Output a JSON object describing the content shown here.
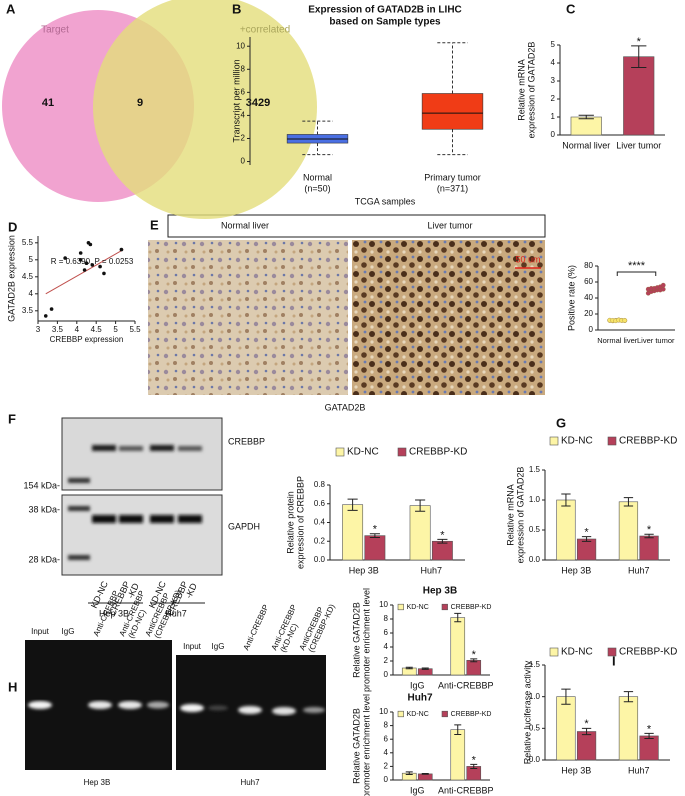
{
  "chart_data": [
    {
      "type": "venn",
      "panel": "A",
      "sets": [
        "Target",
        "+correlated"
      ],
      "values": [
        41,
        9,
        3429
      ],
      "colors": [
        "#ee8cc4",
        "#e3dd7a"
      ]
    },
    {
      "type": "box",
      "panel": "B",
      "title": [
        "Expression of GATAD2B in LIHC",
        "based on Sample types"
      ],
      "ylabel": "Transcript per million",
      "xlabel": "TCGA samples",
      "categories": [
        "Normal",
        "Primary tumor"
      ],
      "category_notes": [
        "(n=50)",
        "(n=371)"
      ],
      "boxes": [
        {
          "min": 0.6,
          "q1": 1.6,
          "median": 1.95,
          "q3": 2.35,
          "max": 3.5
        },
        {
          "min": 0.6,
          "q1": 2.8,
          "median": 4.2,
          "q3": 5.9,
          "max": 10.3
        }
      ],
      "colors": [
        "#4a6fe3",
        "#f03c16"
      ],
      "ylim": [
        -0.3,
        10.8
      ],
      "yticks": [
        0,
        2,
        4,
        6,
        8,
        10
      ]
    },
    {
      "type": "bar",
      "panel": "C",
      "ylabel": [
        "Relative mRNA",
        "expression of GATAD2B"
      ],
      "categories": [
        "Normal liver",
        "Liver tumor"
      ],
      "values": [
        1.0,
        4.35
      ],
      "errors": [
        0.1,
        0.6
      ],
      "significance": [
        null,
        "*"
      ],
      "colors": [
        "#fdf5a6",
        "#b5405a"
      ],
      "ylim": [
        0,
        5
      ],
      "yticks": [
        0,
        1,
        2,
        3,
        4,
        5
      ]
    },
    {
      "type": "scatter",
      "panel": "D",
      "annotation": "R = 0.6390, P = 0.0253",
      "xlabel": "CREBBP expression",
      "ylabel": "GATAD2B expression",
      "x": [
        3.2,
        3.35,
        3.7,
        4.1,
        4.1,
        4.2,
        4.25,
        4.3,
        4.35,
        4.4,
        4.6,
        4.7,
        5.15
      ],
      "y": [
        3.35,
        3.55,
        5.05,
        5.2,
        5.0,
        4.7,
        4.9,
        5.5,
        5.45,
        4.85,
        4.8,
        4.6,
        5.3
      ],
      "color": "#111111",
      "trendline": {
        "x": [
          3.2,
          5.2
        ],
        "y": [
          4.0,
          5.3
        ]
      },
      "trend_color": "#c0504d",
      "xlim": [
        3,
        5.5
      ],
      "ylim": [
        3.2,
        5.7
      ],
      "xticks": [
        3,
        3.5,
        4,
        4.5,
        5,
        5.5
      ],
      "yticks": [
        3.5,
        4,
        4.5,
        5,
        5.5
      ]
    },
    {
      "type": "strip",
      "ylabel": "Positive rate (%)",
      "categories": [
        "Normal liver",
        "Liver tumor"
      ],
      "values": [
        [
          12,
          11.5,
          12,
          12.5,
          12,
          11.8,
          12.2,
          12,
          11.6,
          12.4,
          12,
          12
        ],
        [
          46,
          48,
          49,
          50,
          50,
          51,
          51,
          52,
          52,
          53,
          54,
          56
        ]
      ],
      "colors": [
        "#f7e46a",
        "#b5405a"
      ],
      "significance": "****",
      "ylim": [
        0,
        80
      ],
      "yticks": [
        0,
        20,
        40,
        60,
        80
      ]
    },
    {
      "type": "bar",
      "ylabel": [
        "Relative protein",
        "expression of CREBBP"
      ],
      "categories": [
        "Hep 3B",
        "Huh7"
      ],
      "series": [
        {
          "name": "KD-NC",
          "color": "#fdf5a6",
          "values": [
            0.59,
            0.58
          ],
          "errors": [
            0.06,
            0.06
          ]
        },
        {
          "name": "CREBBP-KD",
          "color": "#b5405a",
          "values": [
            0.26,
            0.2
          ],
          "errors": [
            0.02,
            0.02
          ],
          "significance": [
            "*",
            "*"
          ]
        }
      ],
      "ylim": [
        0,
        0.8
      ],
      "yticks": [
        {
          "value": 0,
          "label": "0.0"
        },
        {
          "value": 0.2,
          "label": "0.2"
        },
        {
          "value": 0.4,
          "label": "0.4"
        },
        {
          "value": 0.6,
          "label": "0.6"
        },
        {
          "value": 0.8,
          "label": "0.8"
        }
      ]
    },
    {
      "type": "bar",
      "panel": "G",
      "ylabel": [
        "Relative mRNA",
        "expression of GATAD2B"
      ],
      "categories": [
        "Hep 3B",
        "Huh7"
      ],
      "series": [
        {
          "name": "KD-NC",
          "color": "#fdf5a6",
          "values": [
            1.0,
            0.97
          ],
          "errors": [
            0.1,
            0.07
          ]
        },
        {
          "name": "CREBBP-KD",
          "color": "#b5405a",
          "values": [
            0.35,
            0.4
          ],
          "errors": [
            0.04,
            0.03
          ],
          "significance": [
            "*",
            "*"
          ]
        }
      ],
      "ylim": [
        0,
        1.5
      ],
      "yticks": [
        {
          "value": 0,
          "label": "0.0"
        },
        {
          "value": 0.5,
          "label": "0.5"
        },
        {
          "value": 1,
          "label": "1.0"
        },
        {
          "value": 1.5,
          "label": "1.5"
        }
      ]
    },
    {
      "type": "bar",
      "title": "Hep 3B",
      "ylabel": [
        "Relative GATAD2B",
        "promoter enrichment level"
      ],
      "categories": [
        "IgG",
        "Anti-CREBBP"
      ],
      "series": [
        {
          "name": "KD-NC",
          "color": "#fdf5a6",
          "values": [
            1.0,
            8.2
          ],
          "errors": [
            0.1,
            0.6
          ]
        },
        {
          "name": "CREBBP-KD",
          "color": "#b5405a",
          "values": [
            0.9,
            2.1
          ],
          "errors": [
            0.1,
            0.2
          ],
          "significance": [
            null,
            "*"
          ]
        }
      ],
      "ylim": [
        0,
        10
      ],
      "yticks": [
        0,
        2,
        4,
        6,
        8,
        10
      ]
    },
    {
      "type": "bar",
      "title": "Huh7",
      "ylabel": [
        "Relative GATAD2B",
        "promoter enrichment level"
      ],
      "categories": [
        "IgG",
        "Anti-CREBBP"
      ],
      "series": [
        {
          "name": "KD-NC",
          "color": "#fdf5a6",
          "values": [
            1.0,
            7.4
          ],
          "errors": [
            0.2,
            0.7
          ]
        },
        {
          "name": "CREBBP-KD",
          "color": "#b5405a",
          "values": [
            0.9,
            2.0
          ],
          "errors": [
            0.05,
            0.3
          ],
          "significance": [
            null,
            "*"
          ]
        }
      ],
      "ylim": [
        0,
        10
      ],
      "yticks": [
        0,
        2,
        4,
        6,
        8,
        10
      ]
    },
    {
      "type": "bar",
      "panel": "I",
      "ylabel": "Relative luciferase activity",
      "categories": [
        "Hep 3B",
        "Huh7"
      ],
      "series": [
        {
          "name": "KD-NC",
          "color": "#fdf5a6",
          "values": [
            1.0,
            1.0
          ],
          "errors": [
            0.12,
            0.08
          ]
        },
        {
          "name": "CREBBP-KD",
          "color": "#b5405a",
          "values": [
            0.45,
            0.38
          ],
          "errors": [
            0.05,
            0.04
          ],
          "significance": [
            "*",
            "*"
          ]
        }
      ],
      "ylim": [
        0,
        1.5
      ],
      "yticks": [
        {
          "value": 0,
          "label": "0.0"
        },
        {
          "value": 0.5,
          "label": "0.5"
        },
        {
          "value": 1,
          "label": "1.0"
        },
        {
          "value": 1.5,
          "label": "1.5"
        }
      ]
    }
  ],
  "figure": {
    "E": {
      "panel": "E",
      "headers": [
        "Normal liver",
        "Liver tumor"
      ],
      "scale_bar": "50 um",
      "caption": "GATAD2B"
    },
    "F": {
      "panel": "F",
      "blots": [
        "CREBBP",
        "GAPDH"
      ],
      "markers": [
        "154 kDa-",
        "38 kDa-",
        "28 kDa-"
      ],
      "lanes": [
        [
          "KD-NC"
        ],
        [
          "CREBBP",
          "-KD"
        ],
        [
          "KD-NC"
        ],
        [
          "CREBBP",
          "-KD"
        ]
      ],
      "groups": [
        "Hep 3B",
        "Huh7"
      ]
    },
    "H": {
      "panel": "H",
      "gels": [
        {
          "lanes": [
            [
              "Input"
            ],
            [
              "IgG"
            ],
            [
              "Anti-CREBBP"
            ],
            [
              "Anti-CREBBP",
              "(KD-NC)"
            ],
            [
              "AntiCREBBP",
              "(CREBBP-KD)"
            ]
          ],
          "caption": "Hep 3B"
        },
        {
          "lanes": [
            [
              "Input"
            ],
            [
              "IgG"
            ],
            [
              "Anti-CREBBP"
            ],
            [
              "Anti-CREBBP",
              "(KD-NC)"
            ],
            [
              "AntiCREBBP",
              "(CREBBP-KD)"
            ]
          ],
          "caption": "Huh7"
        }
      ]
    }
  }
}
